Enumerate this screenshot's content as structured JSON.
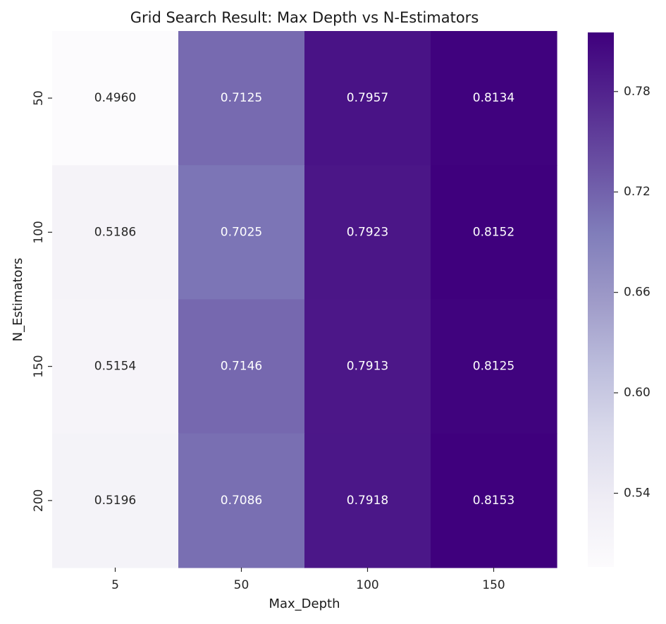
{
  "chart_data": {
    "type": "heatmap",
    "title": "Grid Search Result: Max Depth vs N-Estimators",
    "xlabel": "Max_Depth",
    "ylabel": "N_Estimators",
    "x_categories": [
      "5",
      "50",
      "100",
      "150"
    ],
    "y_categories": [
      "50",
      "100",
      "150",
      "200"
    ],
    "values": [
      [
        0.496,
        0.7125,
        0.7957,
        0.8134
      ],
      [
        0.5186,
        0.7025,
        0.7923,
        0.8152
      ],
      [
        0.5154,
        0.7146,
        0.7913,
        0.8125
      ],
      [
        0.5196,
        0.7086,
        0.7918,
        0.8153
      ]
    ],
    "value_labels": [
      [
        "0.4960",
        "0.7125",
        "0.7957",
        "0.8134"
      ],
      [
        "0.5186",
        "0.7025",
        "0.7923",
        "0.8152"
      ],
      [
        "0.5154",
        "0.7146",
        "0.7913",
        "0.8125"
      ],
      [
        "0.5196",
        "0.7086",
        "0.7918",
        "0.8153"
      ]
    ],
    "colormap": "Purples",
    "colormap_stops": [
      "#fcfbfd",
      "#efedf5",
      "#dadaeb",
      "#bcbddc",
      "#9e9ac8",
      "#807dba",
      "#6a51a3",
      "#54278f",
      "#3f007d"
    ],
    "color_range": [
      0.496,
      0.8153
    ],
    "colorbar_ticks": [
      "0.54",
      "0.60",
      "0.66",
      "0.72",
      "0.78"
    ],
    "colorbar_tick_values": [
      0.54,
      0.6,
      0.66,
      0.72,
      0.78
    ],
    "annotation_colors": {
      "light_cell_text": "#262626",
      "dark_cell_text": "#ffffff"
    },
    "grid": false,
    "legend": "colorbar right"
  }
}
